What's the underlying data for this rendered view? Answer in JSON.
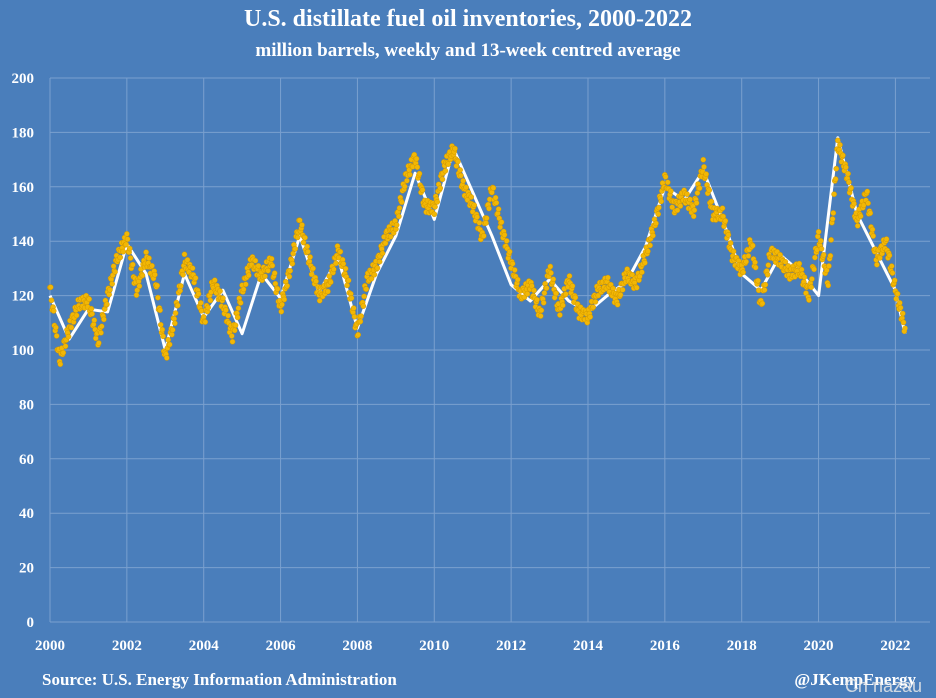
{
  "chart_data": {
    "type": "line",
    "title": "U.S. distillate fuel oil inventories, 2000-2022",
    "subtitle": "million barrels, weekly and 13-week centred average",
    "xlim": [
      2000,
      2022.9
    ],
    "ylim": [
      0,
      200
    ],
    "x_ticks": [
      2000,
      2002,
      2004,
      2006,
      2008,
      2010,
      2012,
      2014,
      2016,
      2018,
      2020,
      2022
    ],
    "y_ticks": [
      0,
      20,
      40,
      60,
      80,
      100,
      120,
      140,
      160,
      180,
      200
    ],
    "grid": true,
    "colors": {
      "background": "#4a7ebb",
      "grid": "#7aa0cf",
      "weekly": "#f2b705",
      "average": "#ffffff"
    },
    "series": [
      {
        "style": "dots",
        "x": [
          2000.0,
          2000.25,
          2000.5,
          2000.75,
          2001.0,
          2001.25,
          2001.5,
          2001.75,
          2002.0,
          2002.25,
          2002.5,
          2002.75,
          2003.0,
          2003.25,
          2003.5,
          2003.75,
          2004.0,
          2004.25,
          2004.5,
          2004.75,
          2005.0,
          2005.25,
          2005.5,
          2005.75,
          2006.0,
          2006.25,
          2006.5,
          2006.75,
          2007.0,
          2007.25,
          2007.5,
          2007.75,
          2008.0,
          2008.25,
          2008.5,
          2008.75,
          2009.0,
          2009.25,
          2009.5,
          2009.75,
          2010.0,
          2010.25,
          2010.5,
          2010.75,
          2011.0,
          2011.25,
          2011.5,
          2011.75,
          2012.0,
          2012.25,
          2012.5,
          2012.75,
          2013.0,
          2013.25,
          2013.5,
          2013.75,
          2014.0,
          2014.25,
          2014.5,
          2014.75,
          2015.0,
          2015.25,
          2015.5,
          2015.75,
          2016.0,
          2016.25,
          2016.5,
          2016.75,
          2017.0,
          2017.25,
          2017.5,
          2017.75,
          2018.0,
          2018.25,
          2018.5,
          2018.75,
          2019.0,
          2019.25,
          2019.5,
          2019.75,
          2020.0,
          2020.25,
          2020.5,
          2020.75,
          2021.0,
          2021.25,
          2021.5,
          2021.75,
          2022.0,
          2022.25
        ],
        "y": [
          123,
          96,
          108,
          117,
          118,
          103,
          120,
          134,
          141,
          122,
          134,
          126,
          97,
          112,
          133,
          127,
          110,
          125,
          117,
          105,
          122,
          133,
          127,
          133,
          115,
          130,
          147,
          133,
          120,
          124,
          137,
          125,
          106,
          126,
          131,
          142,
          146,
          163,
          171,
          153,
          152,
          167,
          174,
          160,
          153,
          141,
          160,
          145,
          132,
          120,
          124,
          113,
          130,
          114,
          126,
          114,
          112,
          122,
          125,
          118,
          128,
          124,
          135,
          147,
          163,
          152,
          157,
          151,
          168,
          150,
          150,
          135,
          129,
          140,
          116,
          136,
          133,
          128,
          130,
          120,
          142,
          125,
          176,
          164,
          147,
          158,
          133,
          140,
          122,
          108
        ]
      },
      {
        "style": "line",
        "x": [
          2000.0,
          2000.5,
          2001.0,
          2001.5,
          2002.0,
          2002.5,
          2003.0,
          2003.5,
          2004.0,
          2004.5,
          2005.0,
          2005.5,
          2006.0,
          2006.5,
          2007.0,
          2007.5,
          2008.0,
          2008.5,
          2009.0,
          2009.5,
          2010.0,
          2010.5,
          2011.0,
          2011.5,
          2012.0,
          2012.5,
          2013.0,
          2013.5,
          2014.0,
          2014.5,
          2015.0,
          2015.5,
          2016.0,
          2016.5,
          2017.0,
          2017.5,
          2018.0,
          2018.5,
          2019.0,
          2019.5,
          2020.0,
          2020.5,
          2021.0,
          2021.5,
          2022.0,
          2022.25
        ],
        "y": [
          120,
          104,
          115,
          114,
          139,
          128,
          100,
          128,
          112,
          122,
          106,
          128,
          119,
          142,
          121,
          134,
          108,
          128,
          142,
          165,
          148,
          174,
          158,
          142,
          124,
          118,
          126,
          118,
          114,
          120,
          125,
          138,
          160,
          155,
          166,
          148,
          128,
          122,
          135,
          129,
          120,
          178,
          150,
          136,
          122,
          106
        ]
      }
    ]
  },
  "footer": {
    "source": "Source: U.S. Energy Information Administration",
    "credit": "@JKempEnergy",
    "watermark": "Ch  nazau"
  }
}
